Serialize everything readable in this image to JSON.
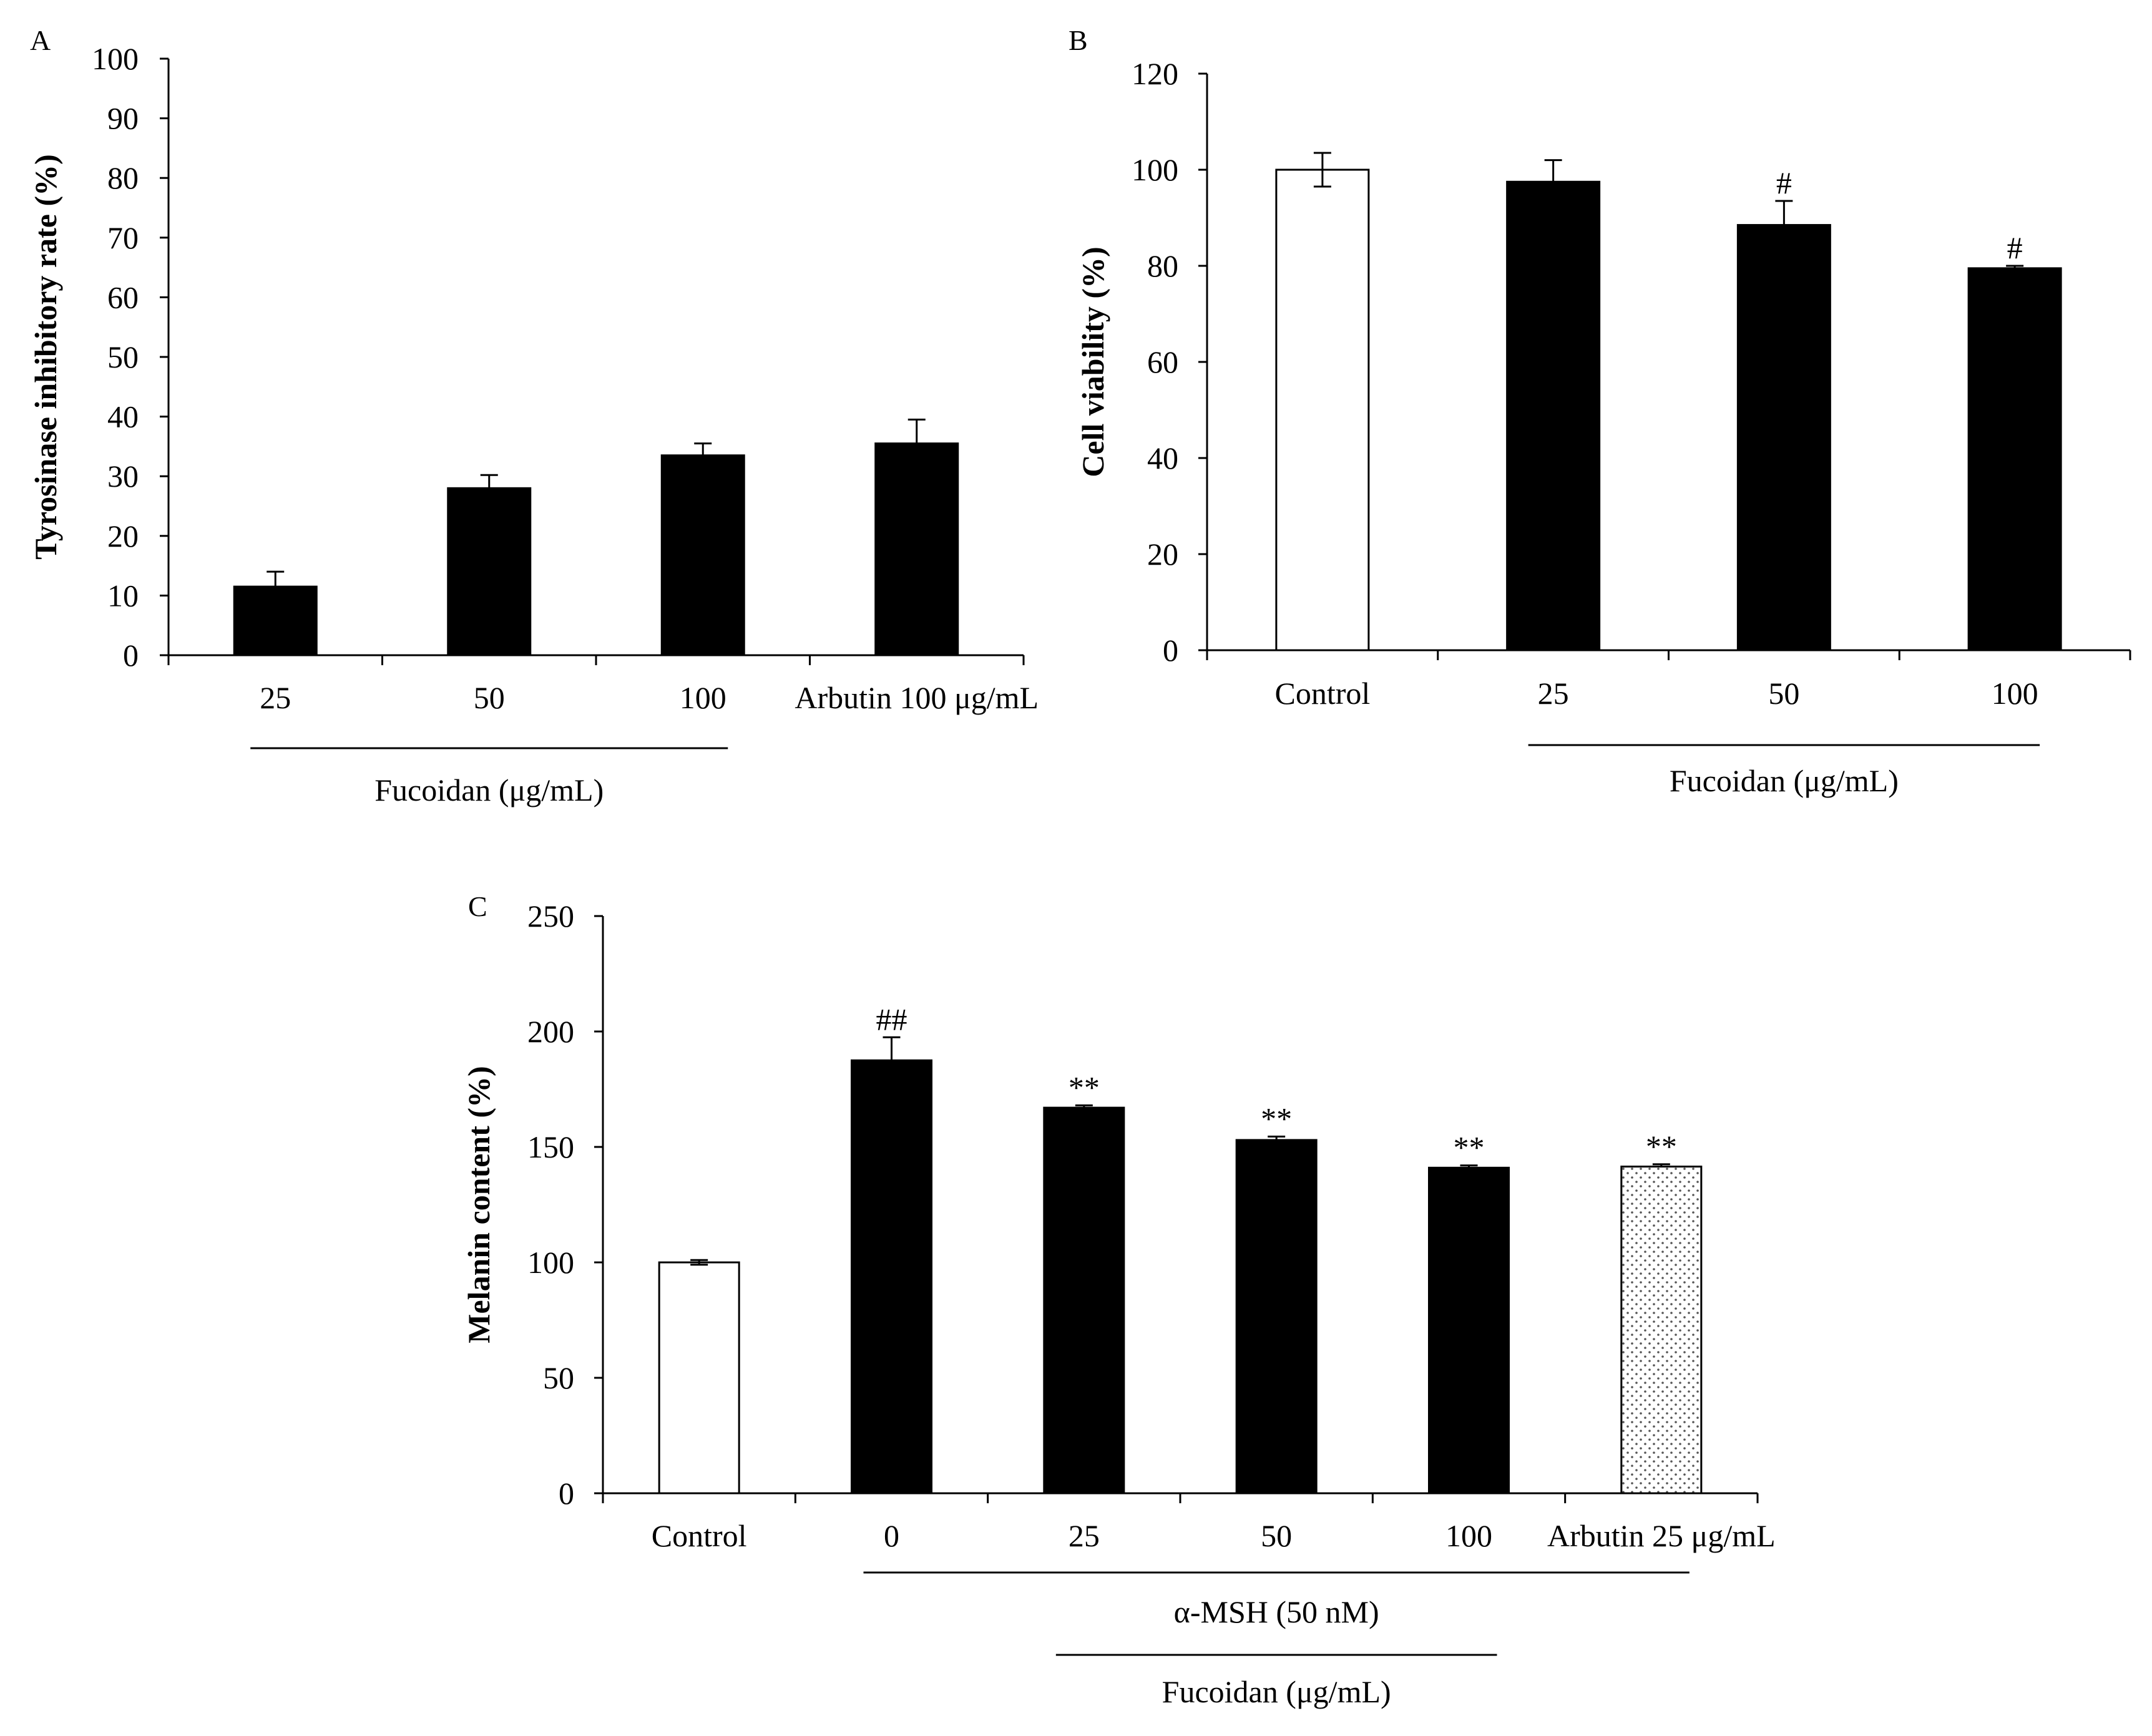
{
  "colors": {
    "black_bar": "#000000",
    "white_bar": "#ffffff",
    "outline": "#000000",
    "dotted_fill": "#ffffff",
    "dot_color": "#555555"
  },
  "chart_data": [
    {
      "id": "A",
      "panel_label": "A",
      "type": "bar",
      "ylabel": "Tyrosinase inhibitory rate (%)",
      "ylim": [
        0,
        100
      ],
      "yticks": [
        0,
        10,
        20,
        30,
        40,
        50,
        60,
        70,
        80,
        90,
        100
      ],
      "categories": [
        "25",
        "50",
        "100",
        "Arbutin 100  μg/mL"
      ],
      "values": [
        11.5,
        28,
        33.5,
        35.5
      ],
      "errors": [
        2.5,
        2.2,
        2,
        4
      ],
      "bar_styles": [
        "black",
        "black",
        "black",
        "black"
      ],
      "significance": [
        "",
        "",
        "",
        ""
      ],
      "groups": [
        {
          "label": "Fucoidan (μg/mL)",
          "from": 0,
          "to": 2
        }
      ]
    },
    {
      "id": "B",
      "panel_label": "B",
      "type": "bar",
      "ylabel": "Cell viability (%)",
      "ylim": [
        0,
        120
      ],
      "yticks": [
        0,
        20,
        40,
        60,
        80,
        100,
        120
      ],
      "categories": [
        "Control",
        "25",
        "50",
        "100"
      ],
      "values": [
        100,
        97.5,
        88.5,
        79.5
      ],
      "errors": [
        3.5,
        4.5,
        5,
        0.5
      ],
      "bar_styles": [
        "white",
        "black",
        "black",
        "black"
      ],
      "significance": [
        "",
        "",
        "#",
        "#"
      ],
      "groups": [
        {
          "label": "Fucoidan (μg/mL)",
          "from": 1,
          "to": 3
        }
      ]
    },
    {
      "id": "C",
      "panel_label": "C",
      "type": "bar",
      "ylabel": "Melanin content (%)",
      "ylim": [
        0,
        250
      ],
      "yticks": [
        0,
        50,
        100,
        150,
        200,
        250
      ],
      "categories": [
        "Control",
        "0",
        "25",
        "50",
        "100",
        "Arbutin 25  μg/mL"
      ],
      "values": [
        100,
        187.5,
        167,
        153,
        141,
        141.5
      ],
      "errors": [
        1,
        10,
        1,
        1.5,
        1,
        1
      ],
      "bar_styles": [
        "white",
        "black",
        "black",
        "black",
        "black",
        "dotted"
      ],
      "significance": [
        "",
        "##",
        "**",
        "**",
        "**",
        "**"
      ],
      "groups": [
        {
          "label": "α-MSH (50 nM)",
          "from": 1,
          "to": 5
        },
        {
          "label": "Fucoidan (μg/mL)",
          "from": 2,
          "to": 4
        }
      ]
    }
  ]
}
